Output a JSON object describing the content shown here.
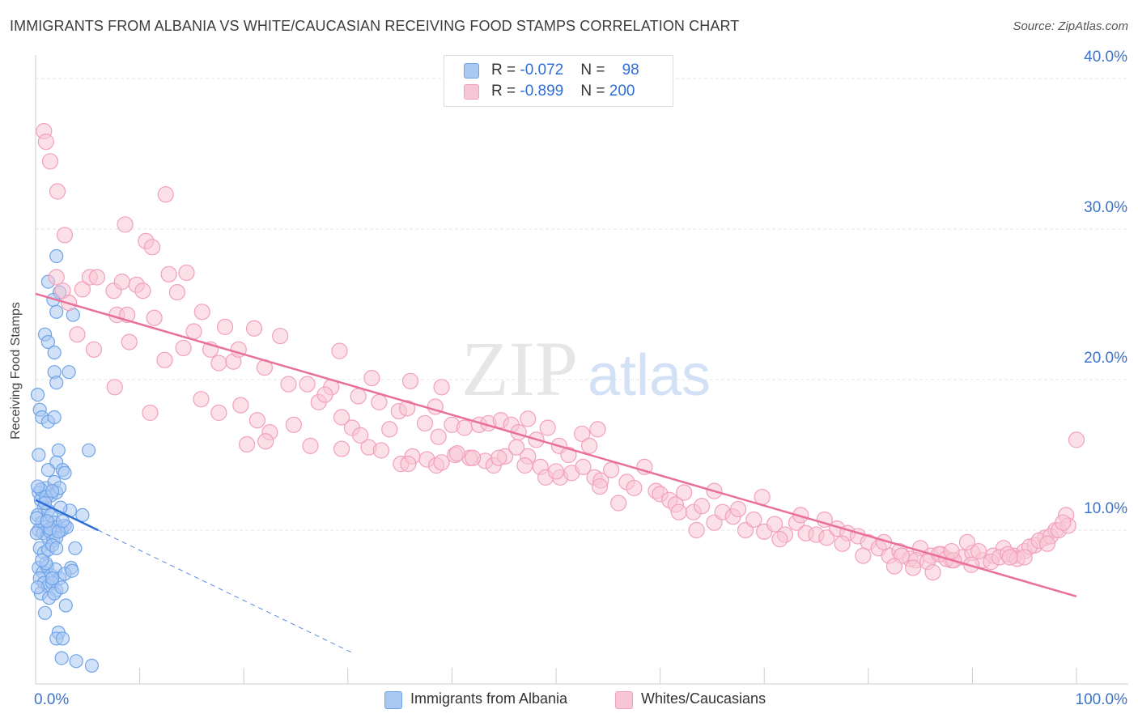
{
  "title": "IMMIGRANTS FROM ALBANIA VS WHITE/CAUCASIAN RECEIVING FOOD STAMPS CORRELATION CHART",
  "source": "Source: ZipAtlas.com",
  "watermark": {
    "zip": "ZIP",
    "atlas": "atlas"
  },
  "colors": {
    "blue": "#6fa3e8",
    "blue_fill": "#a9c9f3",
    "blue_line": "#2e6fd6",
    "pink": "#f2a0bb",
    "pink_fill": "#f7c6d6",
    "pink_line": "#e8709a",
    "axis_text": "#3b73c9"
  },
  "legend": {
    "rows": [
      {
        "r_label": "R = ",
        "r_value": "-0.072",
        "n_label": "N = ",
        "n_value": "98"
      },
      {
        "r_label": "R = ",
        "r_value": "-0.899",
        "n_label": "N = ",
        "n_value": "200"
      }
    ]
  },
  "bottom_legend": [
    "Immigrants from Albania",
    "Whites/Caucasians"
  ],
  "chart_data": {
    "type": "scatter",
    "title": "IMMIGRANTS FROM ALBANIA VS WHITE/CAUCASIAN RECEIVING FOOD STAMPS CORRELATION CHART",
    "xlabel": "",
    "ylabel": "Receiving Food Stamps",
    "xlim": [
      0,
      100
    ],
    "ylim": [
      0,
      40
    ],
    "x_tick_labels": [
      "0.0%",
      "100.0%"
    ],
    "y_tick_labels": [
      "10.0%",
      "20.0%",
      "30.0%",
      "40.0%"
    ],
    "y_ticks": [
      10,
      20,
      30,
      40
    ],
    "grid": true,
    "legend_position": "top-center",
    "series": [
      {
        "name": "Immigrants from Albania",
        "r": -0.072,
        "n": 98,
        "trend": {
          "x0": 0,
          "y0": 12.0,
          "x1": 6.0,
          "y1": 10.0,
          "dashed_to_x": 30.5
        },
        "points": [
          [
            0.2,
            19.0
          ],
          [
            0.4,
            18.0
          ],
          [
            0.6,
            17.5
          ],
          [
            1.2,
            17.2
          ],
          [
            1.8,
            17.5
          ],
          [
            0.3,
            12.5
          ],
          [
            0.5,
            12.0
          ],
          [
            0.8,
            11.5
          ],
          [
            1.0,
            12.8
          ],
          [
            1.5,
            12.3
          ],
          [
            1.8,
            13.2
          ],
          [
            2.0,
            12.5
          ],
          [
            2.3,
            12.8
          ],
          [
            0.2,
            11.0
          ],
          [
            0.6,
            10.5
          ],
          [
            0.9,
            10.2
          ],
          [
            1.2,
            11.3
          ],
          [
            1.5,
            11.0
          ],
          [
            1.8,
            10.5
          ],
          [
            2.1,
            10.2
          ],
          [
            2.5,
            10.0
          ],
          [
            2.8,
            10.3
          ],
          [
            0.3,
            10.0
          ],
          [
            0.7,
            9.8
          ],
          [
            1.1,
            9.6
          ],
          [
            1.4,
            9.9
          ],
          [
            1.7,
            9.3
          ],
          [
            2.0,
            9.5
          ],
          [
            0.4,
            8.8
          ],
          [
            0.8,
            8.5
          ],
          [
            1.2,
            8.7
          ],
          [
            1.6,
            9.0
          ],
          [
            2.0,
            8.8
          ],
          [
            0.3,
            7.5
          ],
          [
            0.7,
            7.2
          ],
          [
            1.1,
            7.6
          ],
          [
            1.5,
            7.0
          ],
          [
            1.9,
            7.4
          ],
          [
            2.3,
            6.8
          ],
          [
            0.4,
            6.8
          ],
          [
            0.8,
            6.5
          ],
          [
            1.2,
            6.3
          ],
          [
            1.6,
            6.5
          ],
          [
            2.0,
            6.0
          ],
          [
            0.5,
            5.8
          ],
          [
            1.3,
            5.5
          ],
          [
            1.8,
            5.8
          ],
          [
            0.9,
            4.5
          ],
          [
            2.9,
            5.0
          ],
          [
            2.2,
            3.2
          ],
          [
            2.0,
            2.8
          ],
          [
            2.6,
            2.8
          ],
          [
            2.5,
            1.5
          ],
          [
            3.9,
            1.3
          ],
          [
            5.4,
            1.0
          ],
          [
            1.2,
            26.5
          ],
          [
            2.3,
            25.8
          ],
          [
            1.7,
            25.3
          ],
          [
            2.0,
            24.5
          ],
          [
            3.6,
            24.3
          ],
          [
            0.9,
            23.0
          ],
          [
            1.2,
            22.5
          ],
          [
            1.8,
            21.8
          ],
          [
            3.2,
            20.5
          ],
          [
            1.8,
            20.5
          ],
          [
            2.0,
            19.8
          ],
          [
            2.2,
            15.3
          ],
          [
            5.1,
            15.3
          ],
          [
            2.0,
            14.5
          ],
          [
            2.6,
            14.0
          ],
          [
            2.8,
            13.8
          ],
          [
            1.2,
            14.0
          ],
          [
            0.5,
            12.7
          ],
          [
            1.0,
            12.2
          ],
          [
            3.3,
            11.3
          ],
          [
            4.5,
            11.0
          ],
          [
            2.4,
            11.5
          ],
          [
            0.1,
            10.8
          ],
          [
            3.0,
            10.2
          ],
          [
            0.1,
            9.8
          ],
          [
            3.8,
            8.8
          ],
          [
            1.0,
            7.8
          ],
          [
            3.4,
            7.5
          ],
          [
            2.8,
            7.1
          ],
          [
            0.2,
            6.2
          ],
          [
            1.6,
            6.8
          ],
          [
            2.5,
            6.2
          ],
          [
            0.6,
            8.0
          ],
          [
            2.0,
            28.2
          ],
          [
            0.3,
            15.0
          ],
          [
            1.4,
            10.1
          ],
          [
            2.2,
            9.9
          ],
          [
            0.9,
            11.8
          ],
          [
            1.6,
            12.6
          ],
          [
            0.2,
            12.9
          ],
          [
            2.6,
            10.6
          ],
          [
            3.5,
            7.3
          ],
          [
            1.1,
            10.6
          ]
        ]
      },
      {
        "name": "Whites/Caucasians",
        "r": -0.899,
        "n": 200,
        "trend": {
          "x0": 0,
          "y0": 25.7,
          "x1": 100,
          "y1": 5.6
        },
        "points": [
          [
            0.8,
            36.5
          ],
          [
            1.0,
            35.8
          ],
          [
            1.4,
            34.5
          ],
          [
            2.1,
            32.5
          ],
          [
            12.5,
            32.3
          ],
          [
            8.6,
            30.3
          ],
          [
            2.8,
            29.6
          ],
          [
            10.6,
            29.2
          ],
          [
            11.2,
            28.8
          ],
          [
            2.0,
            26.8
          ],
          [
            4.5,
            26.0
          ],
          [
            5.2,
            26.8
          ],
          [
            5.9,
            26.8
          ],
          [
            7.5,
            25.9
          ],
          [
            8.3,
            26.5
          ],
          [
            9.7,
            26.3
          ],
          [
            10.3,
            25.9
          ],
          [
            11.4,
            24.1
          ],
          [
            12.8,
            27.0
          ],
          [
            13.6,
            25.8
          ],
          [
            14.5,
            27.1
          ],
          [
            2.6,
            25.9
          ],
          [
            3.2,
            25.1
          ],
          [
            4.0,
            23.0
          ],
          [
            5.6,
            22.0
          ],
          [
            7.8,
            24.3
          ],
          [
            8.8,
            24.3
          ],
          [
            9.0,
            22.5
          ],
          [
            12.4,
            21.3
          ],
          [
            14.2,
            22.1
          ],
          [
            15.2,
            23.2
          ],
          [
            16.0,
            24.5
          ],
          [
            16.8,
            22.0
          ],
          [
            17.6,
            21.1
          ],
          [
            18.2,
            23.5
          ],
          [
            19.0,
            21.2
          ],
          [
            19.5,
            22.0
          ],
          [
            21.0,
            23.4
          ],
          [
            22.0,
            20.8
          ],
          [
            23.5,
            22.9
          ],
          [
            24.3,
            19.7
          ],
          [
            26.1,
            19.7
          ],
          [
            28.4,
            19.5
          ],
          [
            29.2,
            21.9
          ],
          [
            7.6,
            19.5
          ],
          [
            11.0,
            17.8
          ],
          [
            15.9,
            18.7
          ],
          [
            17.6,
            17.8
          ],
          [
            19.7,
            18.3
          ],
          [
            21.3,
            17.3
          ],
          [
            22.5,
            16.5
          ],
          [
            24.8,
            17.0
          ],
          [
            27.2,
            18.5
          ],
          [
            27.8,
            19.0
          ],
          [
            29.4,
            17.5
          ],
          [
            30.4,
            16.8
          ],
          [
            31.0,
            18.9
          ],
          [
            32.3,
            20.1
          ],
          [
            33.0,
            18.5
          ],
          [
            34.0,
            16.7
          ],
          [
            34.9,
            17.9
          ],
          [
            35.7,
            18.1
          ],
          [
            36.0,
            19.9
          ],
          [
            37.4,
            17.1
          ],
          [
            38.4,
            18.2
          ],
          [
            39.0,
            19.5
          ],
          [
            40.0,
            17.0
          ],
          [
            41.2,
            16.8
          ],
          [
            42.6,
            17.0
          ],
          [
            43.5,
            17.1
          ],
          [
            44.7,
            17.3
          ],
          [
            45.7,
            17.0
          ],
          [
            46.4,
            16.5
          ],
          [
            47.3,
            17.4
          ],
          [
            48.1,
            16.0
          ],
          [
            49.2,
            16.8
          ],
          [
            50.3,
            15.6
          ],
          [
            51.2,
            15.0
          ],
          [
            52.5,
            16.4
          ],
          [
            53.2,
            15.6
          ],
          [
            54.0,
            16.7
          ],
          [
            20.3,
            15.7
          ],
          [
            22.1,
            15.9
          ],
          [
            26.4,
            15.6
          ],
          [
            29.4,
            15.4
          ],
          [
            32.0,
            15.5
          ],
          [
            35.1,
            14.4
          ],
          [
            36.2,
            14.9
          ],
          [
            37.6,
            14.7
          ],
          [
            38.5,
            14.3
          ],
          [
            39.0,
            14.5
          ],
          [
            40.3,
            15.0
          ],
          [
            41.7,
            14.8
          ],
          [
            43.2,
            14.6
          ],
          [
            44.0,
            14.3
          ],
          [
            45.1,
            14.9
          ],
          [
            46.2,
            15.5
          ],
          [
            47.3,
            14.9
          ],
          [
            48.5,
            14.2
          ],
          [
            49.0,
            13.5
          ],
          [
            50.4,
            13.5
          ],
          [
            51.5,
            13.8
          ],
          [
            52.6,
            14.2
          ],
          [
            53.7,
            13.5
          ],
          [
            54.3,
            13.3
          ],
          [
            55.3,
            14.0
          ],
          [
            56.8,
            13.2
          ],
          [
            57.5,
            12.8
          ],
          [
            58.5,
            14.2
          ],
          [
            59.6,
            12.6
          ],
          [
            60.0,
            12.4
          ],
          [
            60.9,
            12.0
          ],
          [
            61.5,
            11.7
          ],
          [
            62.3,
            12.5
          ],
          [
            63.2,
            11.2
          ],
          [
            64.0,
            11.6
          ],
          [
            65.2,
            10.5
          ],
          [
            66.0,
            11.2
          ],
          [
            67.0,
            10.9
          ],
          [
            68.2,
            10.0
          ],
          [
            69.0,
            10.7
          ],
          [
            70.0,
            9.9
          ],
          [
            71.0,
            10.4
          ],
          [
            72.0,
            9.7
          ],
          [
            73.1,
            10.5
          ],
          [
            74.0,
            9.8
          ],
          [
            75.0,
            9.7
          ],
          [
            76.0,
            9.5
          ],
          [
            77.0,
            10.1
          ],
          [
            78.0,
            9.8
          ],
          [
            79.0,
            9.6
          ],
          [
            80.0,
            9.2
          ],
          [
            81.0,
            8.8
          ],
          [
            82.0,
            8.3
          ],
          [
            83.0,
            8.6
          ],
          [
            84.0,
            8.1
          ],
          [
            85.0,
            8.8
          ],
          [
            86.0,
            8.3
          ],
          [
            87.0,
            8.4
          ],
          [
            88.0,
            8.0
          ],
          [
            89.0,
            8.2
          ],
          [
            90.0,
            8.5
          ],
          [
            91.0,
            8.0
          ],
          [
            92.0,
            8.3
          ],
          [
            93.0,
            8.8
          ],
          [
            94.0,
            8.3
          ],
          [
            95.0,
            8.6
          ],
          [
            96.0,
            9.0
          ],
          [
            97.0,
            9.5
          ],
          [
            98.0,
            10.0
          ],
          [
            99.0,
            11.0
          ],
          [
            100.0,
            16.0
          ],
          [
            65.2,
            12.6
          ],
          [
            67.5,
            11.4
          ],
          [
            69.8,
            12.2
          ],
          [
            71.5,
            9.4
          ],
          [
            73.5,
            11.0
          ],
          [
            75.8,
            10.7
          ],
          [
            77.5,
            9.1
          ],
          [
            79.5,
            8.3
          ],
          [
            81.5,
            9.2
          ],
          [
            83.2,
            8.3
          ],
          [
            84.6,
            8.0
          ],
          [
            85.7,
            7.9
          ],
          [
            86.8,
            8.4
          ],
          [
            87.5,
            8.1
          ],
          [
            88.2,
            8.0
          ],
          [
            89.5,
            9.2
          ],
          [
            90.6,
            8.6
          ],
          [
            91.8,
            7.9
          ],
          [
            92.6,
            8.2
          ],
          [
            93.4,
            8.4
          ],
          [
            94.3,
            8.1
          ],
          [
            95.5,
            8.9
          ],
          [
            96.4,
            9.3
          ],
          [
            97.5,
            9.6
          ],
          [
            98.3,
            10.0
          ],
          [
            99.2,
            10.3
          ],
          [
            82.5,
            7.6
          ],
          [
            84.3,
            7.5
          ],
          [
            86.2,
            7.2
          ],
          [
            88.0,
            8.6
          ],
          [
            89.9,
            7.7
          ],
          [
            93.6,
            8.2
          ],
          [
            95.0,
            8.2
          ],
          [
            97.2,
            9.1
          ],
          [
            98.7,
            10.5
          ],
          [
            61.8,
            11.2
          ],
          [
            63.5,
            10.0
          ],
          [
            56.0,
            11.8
          ],
          [
            54.2,
            12.9
          ],
          [
            50.0,
            13.9
          ],
          [
            47.0,
            14.3
          ],
          [
            44.5,
            14.8
          ],
          [
            42.0,
            14.8
          ],
          [
            40.5,
            15.1
          ],
          [
            38.7,
            16.2
          ],
          [
            35.8,
            14.4
          ],
          [
            33.2,
            15.3
          ],
          [
            31.2,
            16.3
          ]
        ]
      }
    ]
  }
}
